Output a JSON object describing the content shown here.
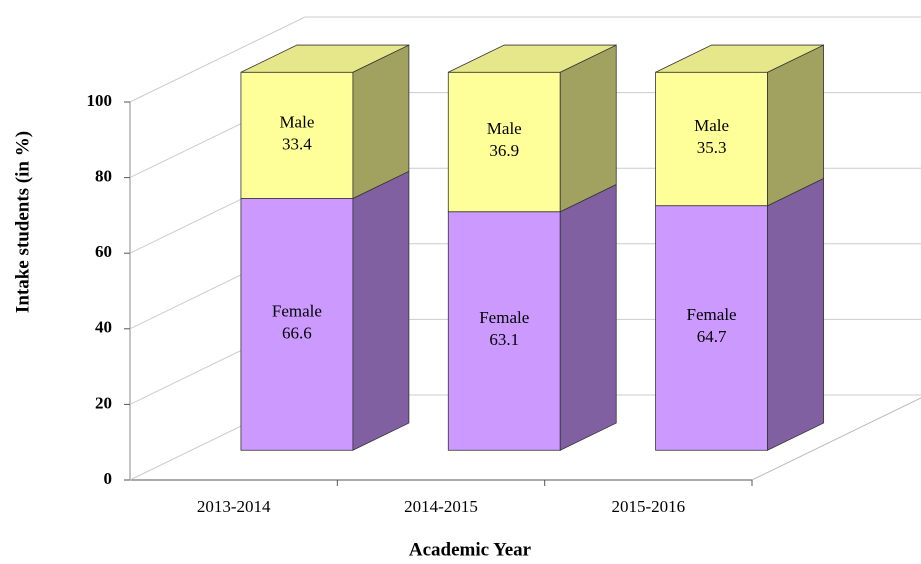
{
  "chart_data": {
    "type": "bar3d_stacked",
    "x_label": "Academic Year",
    "y_label": "Intake students (in %)",
    "categories": [
      "2013-2014",
      "2014-2015",
      "2015-2016"
    ],
    "series": [
      {
        "name": "Female",
        "color": "#cc99ff",
        "values": [
          66.6,
          63.1,
          64.7
        ]
      },
      {
        "name": "Male",
        "color": "#ffff99",
        "values": [
          33.4,
          36.9,
          35.3
        ]
      }
    ],
    "ylim": [
      0,
      100
    ],
    "yticks": [
      0,
      20,
      40,
      60,
      80,
      100
    ],
    "grid": true
  }
}
